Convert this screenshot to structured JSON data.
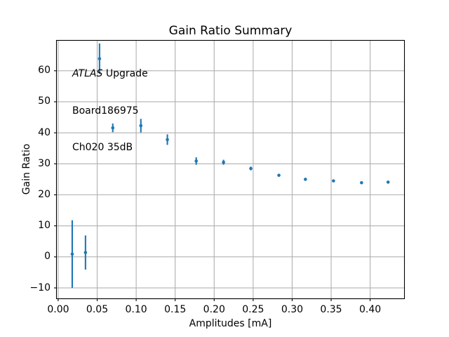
{
  "colors": {
    "point": "#1f77b4",
    "grid": "#b0b0b0",
    "spine": "#000000",
    "background": "#ffffff",
    "text": "#000000"
  },
  "annotation": {
    "line1_italic": "ATLAS",
    "line1_rest": " Upgrade",
    "line2": "Board186975",
    "line3": "Ch020 35dB"
  },
  "chart_data": {
    "type": "scatter",
    "title": "Gain Ratio Summary",
    "xlabel": "Amplitudes [mA]",
    "ylabel": "Gain Ratio",
    "xlim": [
      -0.0022,
      0.444
    ],
    "ylim": [
      -13.5,
      69.8
    ],
    "xticks": [
      0.0,
      0.05,
      0.1,
      0.15,
      0.2,
      0.25,
      0.3,
      0.35,
      0.4
    ],
    "xtick_labels": [
      "0.00",
      "0.05",
      "0.10",
      "0.15",
      "0.20",
      "0.25",
      "0.30",
      "0.35",
      "0.40"
    ],
    "yticks": [
      -10,
      0,
      10,
      20,
      30,
      40,
      50,
      60
    ],
    "ytick_labels": [
      "−10",
      "0",
      "10",
      "20",
      "30",
      "40",
      "50",
      "60"
    ],
    "grid": true,
    "legend": "none",
    "annotation_lines": [
      "ATLAS Upgrade",
      "Board186975",
      "Ch020 35dB"
    ],
    "series": [
      {
        "name": "gain-ratio-vs-amplitude",
        "marker": "circle",
        "color": "#1f77b4",
        "points": [
          {
            "x": 0.018,
            "y": 0.9,
            "yerr": 10.9
          },
          {
            "x": 0.035,
            "y": 1.4,
            "yerr": 5.5
          },
          {
            "x": 0.053,
            "y": 63.9,
            "yerr": 4.9
          },
          {
            "x": 0.07,
            "y": 41.6,
            "yerr": 1.4
          },
          {
            "x": 0.106,
            "y": 42.3,
            "yerr": 2.2
          },
          {
            "x": 0.14,
            "y": 37.8,
            "yerr": 1.7
          },
          {
            "x": 0.177,
            "y": 30.9,
            "yerr": 1.2
          },
          {
            "x": 0.212,
            "y": 30.5,
            "yerr": 0.8
          },
          {
            "x": 0.247,
            "y": 28.5,
            "yerr": 0.6
          },
          {
            "x": 0.283,
            "y": 26.3,
            "yerr": 0.4
          },
          {
            "x": 0.317,
            "y": 25.0,
            "yerr": 0.3
          },
          {
            "x": 0.353,
            "y": 24.5,
            "yerr": 0.3
          },
          {
            "x": 0.389,
            "y": 23.9,
            "yerr": 0.3
          },
          {
            "x": 0.423,
            "y": 24.1,
            "yerr": 0.3
          }
        ]
      }
    ]
  }
}
